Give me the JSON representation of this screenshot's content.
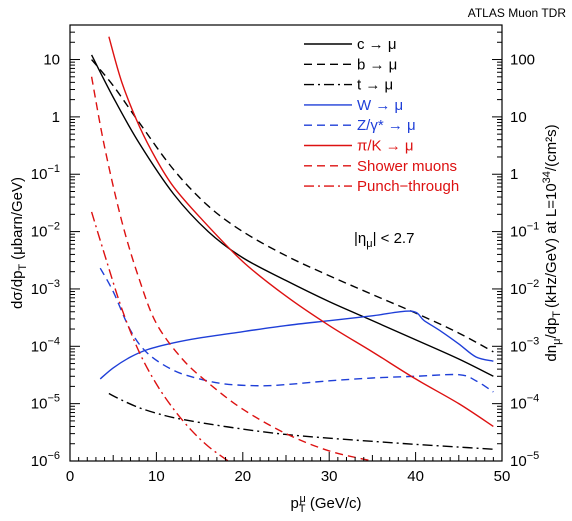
{
  "chart_data": {
    "type": "line",
    "header": "ATLAS Muon TDR",
    "xlabel": "p",
    "xlabel_sup": "μ",
    "xlabel_sub": "T",
    "xlabel_unit": "(GeV/c)",
    "ylabel_left": "dσ/dp",
    "ylabel_left_sub": "T",
    "ylabel_left_unit": "(μbarn/GeV)",
    "ylabel_right": "dn",
    "ylabel_right_sub1": "μ",
    "ylabel_right_mid": "/dp",
    "ylabel_right_sub2": "T",
    "ylabel_right_unit": "(kHz/GeV) at L=10",
    "ylabel_right_exp": "34",
    "ylabel_right_end": "/(cm²s)",
    "annotation": "|η",
    "annotation_sub": "μ",
    "annotation_end": "| < 2.7",
    "xlim": [
      0,
      50
    ],
    "ylim_left": [
      1e-06,
      40
    ],
    "ylim_right": [
      1e-05,
      400
    ],
    "y_scale": "log",
    "x_ticks": [
      0,
      10,
      20,
      30,
      40,
      50
    ],
    "y_left_ticks": [
      {
        "value": 10,
        "label": "10"
      },
      {
        "value": 1,
        "label": "1"
      },
      {
        "value": 0.1,
        "label": "10",
        "exp": "−1"
      },
      {
        "value": 0.01,
        "label": "10",
        "exp": "−2"
      },
      {
        "value": 0.001,
        "label": "10",
        "exp": "−3"
      },
      {
        "value": 0.0001,
        "label": "10",
        "exp": "−4"
      },
      {
        "value": 1e-05,
        "label": "10",
        "exp": "−5"
      },
      {
        "value": 1e-06,
        "label": "10",
        "exp": "−6"
      }
    ],
    "y_right_ticks": [
      {
        "value": 100,
        "label": "100"
      },
      {
        "value": 10,
        "label": "10"
      },
      {
        "value": 1,
        "label": "1"
      },
      {
        "value": 0.1,
        "label": "10",
        "exp": "−1"
      },
      {
        "value": 0.01,
        "label": "10",
        "exp": "−2"
      },
      {
        "value": 0.001,
        "label": "10",
        "exp": "−3"
      },
      {
        "value": 0.0001,
        "label": "10",
        "exp": "−4"
      },
      {
        "value": 1e-05,
        "label": "10",
        "exp": "−5"
      }
    ],
    "series": [
      {
        "name": "c → μ",
        "color": "#000000",
        "dash": "solid",
        "x": [
          2.5,
          5,
          8,
          12,
          16,
          20,
          25,
          30,
          35,
          40,
          45,
          49
        ],
        "y": [
          12,
          2.2,
          0.35,
          0.045,
          0.01,
          0.0035,
          0.0014,
          0.0006,
          0.00028,
          0.00013,
          6e-05,
          3e-05
        ]
      },
      {
        "name": "b → μ",
        "color": "#000000",
        "dash": "8,5",
        "x": [
          2.5,
          5,
          8,
          12,
          16,
          20,
          25,
          30,
          35,
          40,
          45,
          49
        ],
        "y": [
          10,
          3.5,
          0.8,
          0.12,
          0.028,
          0.01,
          0.0038,
          0.0017,
          0.0008,
          0.00038,
          0.00017,
          8e-05
        ]
      },
      {
        "name": "t → μ",
        "color": "#000000",
        "dash": "10,4,2,4",
        "x": [
          4.5,
          6,
          8,
          10,
          12,
          15,
          20,
          25,
          30,
          35,
          40,
          45,
          49
        ],
        "y": [
          1.5e-05,
          1.15e-05,
          8.5e-06,
          6.8e-06,
          5.7e-06,
          4.7e-06,
          3.6e-06,
          2.9e-06,
          2.5e-06,
          2.2e-06,
          1.95e-06,
          1.75e-06,
          1.6e-06
        ]
      },
      {
        "name": "W → μ",
        "color": "#1f3fd8",
        "dash": "solid",
        "x": [
          3.5,
          5,
          7,
          9,
          12,
          15,
          20,
          25,
          30,
          35,
          39.5,
          41,
          43,
          45,
          47,
          49
        ],
        "y": [
          2.7e-05,
          4.2e-05,
          6.5e-05,
          8.8e-05,
          0.000115,
          0.00014,
          0.00018,
          0.00023,
          0.00028,
          0.00034,
          0.00041,
          0.00028,
          0.00018,
          0.00011,
          6.5e-05,
          5.5e-05
        ]
      },
      {
        "name": "Z/γ* → μ",
        "color": "#1f3fd8",
        "dash": "8,5",
        "x": [
          3.5,
          5,
          7,
          9,
          12,
          15,
          18,
          22,
          25,
          30,
          35,
          40,
          45,
          47,
          49
        ],
        "y": [
          0.0023,
          0.0009,
          0.00019,
          7.5e-05,
          3.8e-05,
          2.7e-05,
          2.2e-05,
          2.05e-05,
          2.15e-05,
          2.5e-05,
          2.8e-05,
          3e-05,
          3.2e-05,
          2.5e-05,
          1.6e-05
        ]
      },
      {
        "name": "π/K → μ",
        "color": "#dd1111",
        "dash": "solid",
        "x": [
          4.5,
          6,
          8,
          10,
          12,
          15,
          20,
          25,
          30,
          35,
          40,
          45,
          49
        ],
        "y": [
          25,
          4,
          0.7,
          0.18,
          0.06,
          0.018,
          0.003,
          0.00075,
          0.00023,
          8e-05,
          2.7e-05,
          1e-05,
          4e-06
        ]
      },
      {
        "name": "Shower muons",
        "color": "#dd1111",
        "dash": "8,5",
        "x": [
          2.5,
          4,
          6,
          8,
          10,
          13,
          16,
          20,
          25,
          30,
          35
        ],
        "y": [
          5,
          0.3,
          0.015,
          0.0015,
          0.00025,
          6e-05,
          2.3e-05,
          8e-06,
          3e-06,
          1.5e-06,
          1e-06
        ]
      },
      {
        "name": "Punch−through",
        "color": "#dd1111",
        "dash": "10,4,2,4",
        "x": [
          2.5,
          4,
          6,
          8,
          10,
          12,
          14,
          16,
          18.3
        ],
        "y": [
          0.022,
          0.004,
          0.00045,
          8e-05,
          2.2e-05,
          8e-06,
          3.5e-06,
          1.8e-06,
          1e-06
        ]
      }
    ]
  }
}
